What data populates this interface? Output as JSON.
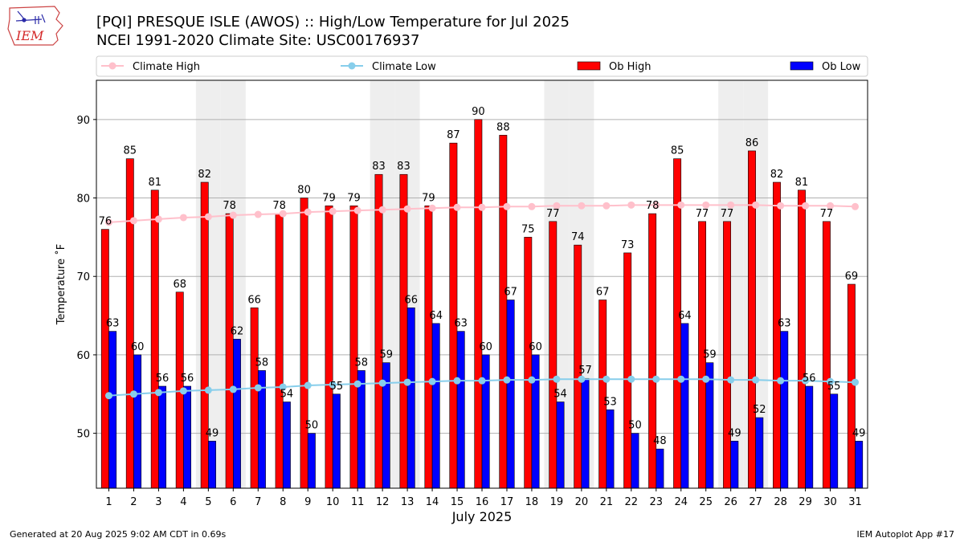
{
  "header": {
    "logo_text": "IEM",
    "title_line1": "[PQI] PRESQUE ISLE (AWOS) :: High/Low Temperature for Jul 2025",
    "title_line2": "NCEI 1991-2020 Climate Site: USC00176937"
  },
  "footer": {
    "generated": "Generated at 20 Aug 2025 9:02 AM CDT in 0.69s",
    "app": "IEM Autoplot App #17"
  },
  "colors": {
    "ob_high": "#ff0000",
    "ob_low": "#0000ff",
    "climate_high": "#ffc0cb",
    "climate_low": "#87ceeb",
    "weekend_shade": "#eeeeee"
  },
  "chart_data": {
    "type": "bar",
    "xlabel": "July 2025",
    "ylabel": "Temperature $^\\circ$F",
    "ylim": [
      43,
      95
    ],
    "yticks": [
      50,
      60,
      70,
      80,
      90
    ],
    "grid": "horizontal",
    "legend_placement": "top",
    "categories": [
      "1",
      "2",
      "3",
      "4",
      "5",
      "6",
      "7",
      "8",
      "9",
      "10",
      "11",
      "12",
      "13",
      "14",
      "15",
      "16",
      "17",
      "18",
      "19",
      "20",
      "21",
      "22",
      "23",
      "24",
      "25",
      "26",
      "27",
      "28",
      "29",
      "30",
      "31"
    ],
    "shaded_days": [
      5,
      6,
      12,
      13,
      19,
      20,
      26,
      27
    ],
    "series": [
      {
        "name": "Ob High",
        "kind": "bar",
        "values": [
          76,
          85,
          81,
          68,
          82,
          78,
          66,
          78,
          80,
          79,
          79,
          83,
          83,
          79,
          87,
          90,
          88,
          75,
          77,
          74,
          67,
          73,
          78,
          85,
          77,
          77,
          86,
          82,
          81,
          77,
          69
        ]
      },
      {
        "name": "Ob Low",
        "kind": "bar",
        "values": [
          63,
          60,
          56,
          56,
          49,
          62,
          58,
          54,
          50,
          55,
          58,
          59,
          66,
          64,
          63,
          60,
          67,
          60,
          54,
          57,
          53,
          50,
          48,
          64,
          59,
          49,
          52,
          63,
          56,
          55,
          49
        ]
      },
      {
        "name": "Climate High",
        "kind": "line",
        "values": [
          76.9,
          77.1,
          77.3,
          77.5,
          77.6,
          77.8,
          77.9,
          78.0,
          78.2,
          78.3,
          78.4,
          78.5,
          78.6,
          78.7,
          78.8,
          78.8,
          78.9,
          78.9,
          79.0,
          79.0,
          79.0,
          79.1,
          79.1,
          79.1,
          79.1,
          79.1,
          79.1,
          79.0,
          79.0,
          79.0,
          78.9
        ]
      },
      {
        "name": "Climate Low",
        "kind": "line",
        "values": [
          54.8,
          55.0,
          55.2,
          55.4,
          55.5,
          55.6,
          55.8,
          55.9,
          56.1,
          56.2,
          56.3,
          56.4,
          56.5,
          56.6,
          56.7,
          56.7,
          56.8,
          56.8,
          56.9,
          56.9,
          56.9,
          56.9,
          56.9,
          56.9,
          56.9,
          56.8,
          56.8,
          56.7,
          56.7,
          56.6,
          56.5
        ]
      }
    ]
  }
}
